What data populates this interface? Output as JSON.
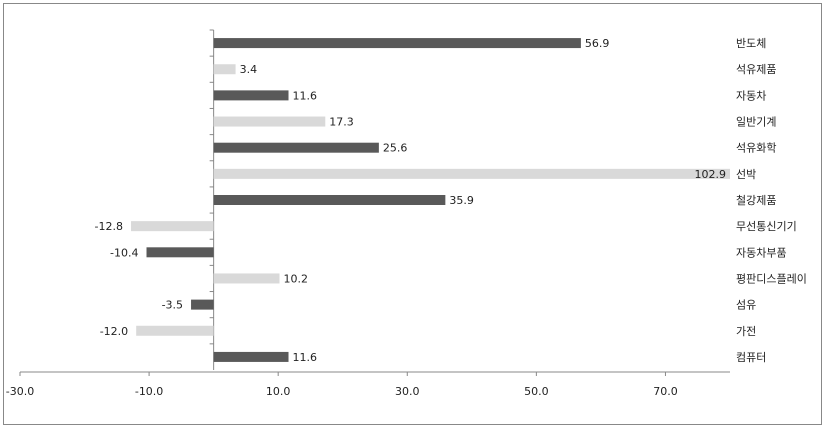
{
  "chart_data": {
    "type": "bar",
    "orientation": "horizontal",
    "categories": [
      "반도체",
      "석유제품",
      "자동차",
      "일반기계",
      "석유화학",
      "선박",
      "철강제품",
      "무선통신기기",
      "자동차부품",
      "평판디스플레이",
      "섬유",
      "가전",
      "컴퓨터"
    ],
    "values": [
      56.9,
      3.4,
      11.6,
      17.3,
      25.6,
      102.9,
      35.9,
      -12.8,
      -10.4,
      10.2,
      -3.5,
      -12.0,
      11.6
    ],
    "value_labels": [
      "56.9",
      "3.4",
      "11.6",
      "17.3",
      "25.6",
      "102.9",
      "35.9",
      "-12.8",
      "-10.4",
      "10.2",
      "-3.5",
      "-12.0",
      "11.6"
    ],
    "colors": [
      "#595959",
      "#d9d9d9",
      "#595959",
      "#d9d9d9",
      "#595959",
      "#d9d9d9",
      "#595959",
      "#d9d9d9",
      "#595959",
      "#d9d9d9",
      "#595959",
      "#d9d9d9",
      "#595959"
    ],
    "xlim": [
      -30,
      80
    ],
    "xticks": [
      {
        "value": -30,
        "label": "-30.0"
      },
      {
        "value": -10,
        "label": "-10.0"
      },
      {
        "value": 10,
        "label": "10.0"
      },
      {
        "value": 30,
        "label": "30.0"
      },
      {
        "value": 50,
        "label": "50.0"
      },
      {
        "value": 70,
        "label": "70.0"
      }
    ],
    "grid": false
  }
}
